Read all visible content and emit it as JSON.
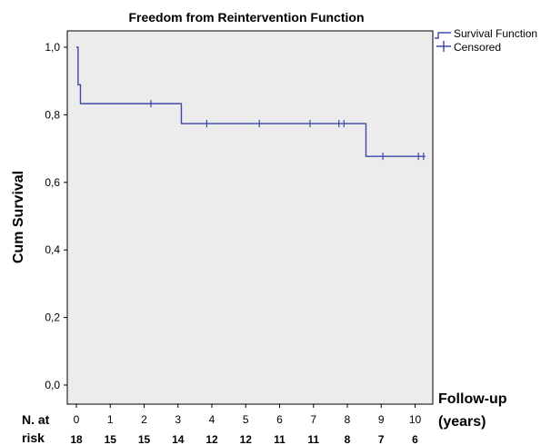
{
  "chart_data": {
    "type": "line",
    "title": "Freedom from Reintervention Function",
    "ylabel": "Cum Survival",
    "xlabel_line1": "Follow-up",
    "xlabel_line2": "(years)",
    "xlim": [
      0,
      10.3
    ],
    "ylim": [
      0.0,
      1.0
    ],
    "x_ticks": [
      "0",
      "1",
      "2",
      "3",
      "4",
      "5",
      "6",
      "7",
      "8",
      "9",
      "10"
    ],
    "y_ticks": [
      "0,0",
      "0,2",
      "0,4",
      "0,6",
      "0,8",
      "1,0"
    ],
    "grid": false,
    "background_color": "#ececec",
    "line_color": "#3f48a8",
    "legend_position": "top-right",
    "legend": [
      "Survival Function",
      "Censored"
    ],
    "series": [
      {
        "name": "Survival Function",
        "steps": [
          {
            "x": 0.0,
            "y": 1.0
          },
          {
            "x": 0.05,
            "y": 0.889
          },
          {
            "x": 0.12,
            "y": 0.833
          },
          {
            "x": 3.1,
            "y": 0.774
          },
          {
            "x": 8.55,
            "y": 0.677
          },
          {
            "x": 10.3,
            "y": 0.677
          }
        ]
      },
      {
        "name": "Censored",
        "points": [
          {
            "x": 2.2,
            "y": 0.833
          },
          {
            "x": 3.85,
            "y": 0.774
          },
          {
            "x": 5.4,
            "y": 0.774
          },
          {
            "x": 6.9,
            "y": 0.774
          },
          {
            "x": 7.75,
            "y": 0.774
          },
          {
            "x": 7.9,
            "y": 0.774
          },
          {
            "x": 9.05,
            "y": 0.677
          },
          {
            "x": 10.1,
            "y": 0.677
          },
          {
            "x": 10.25,
            "y": 0.677
          }
        ]
      }
    ],
    "risk_table": {
      "label_line1": "N. at",
      "label_line2": "risk",
      "times": [
        0,
        1,
        2,
        3,
        4,
        5,
        6,
        7,
        8,
        9,
        10
      ],
      "counts": [
        "18",
        "15",
        "15",
        "14",
        "12",
        "12",
        "11",
        "11",
        "8",
        "7",
        "6"
      ]
    }
  }
}
